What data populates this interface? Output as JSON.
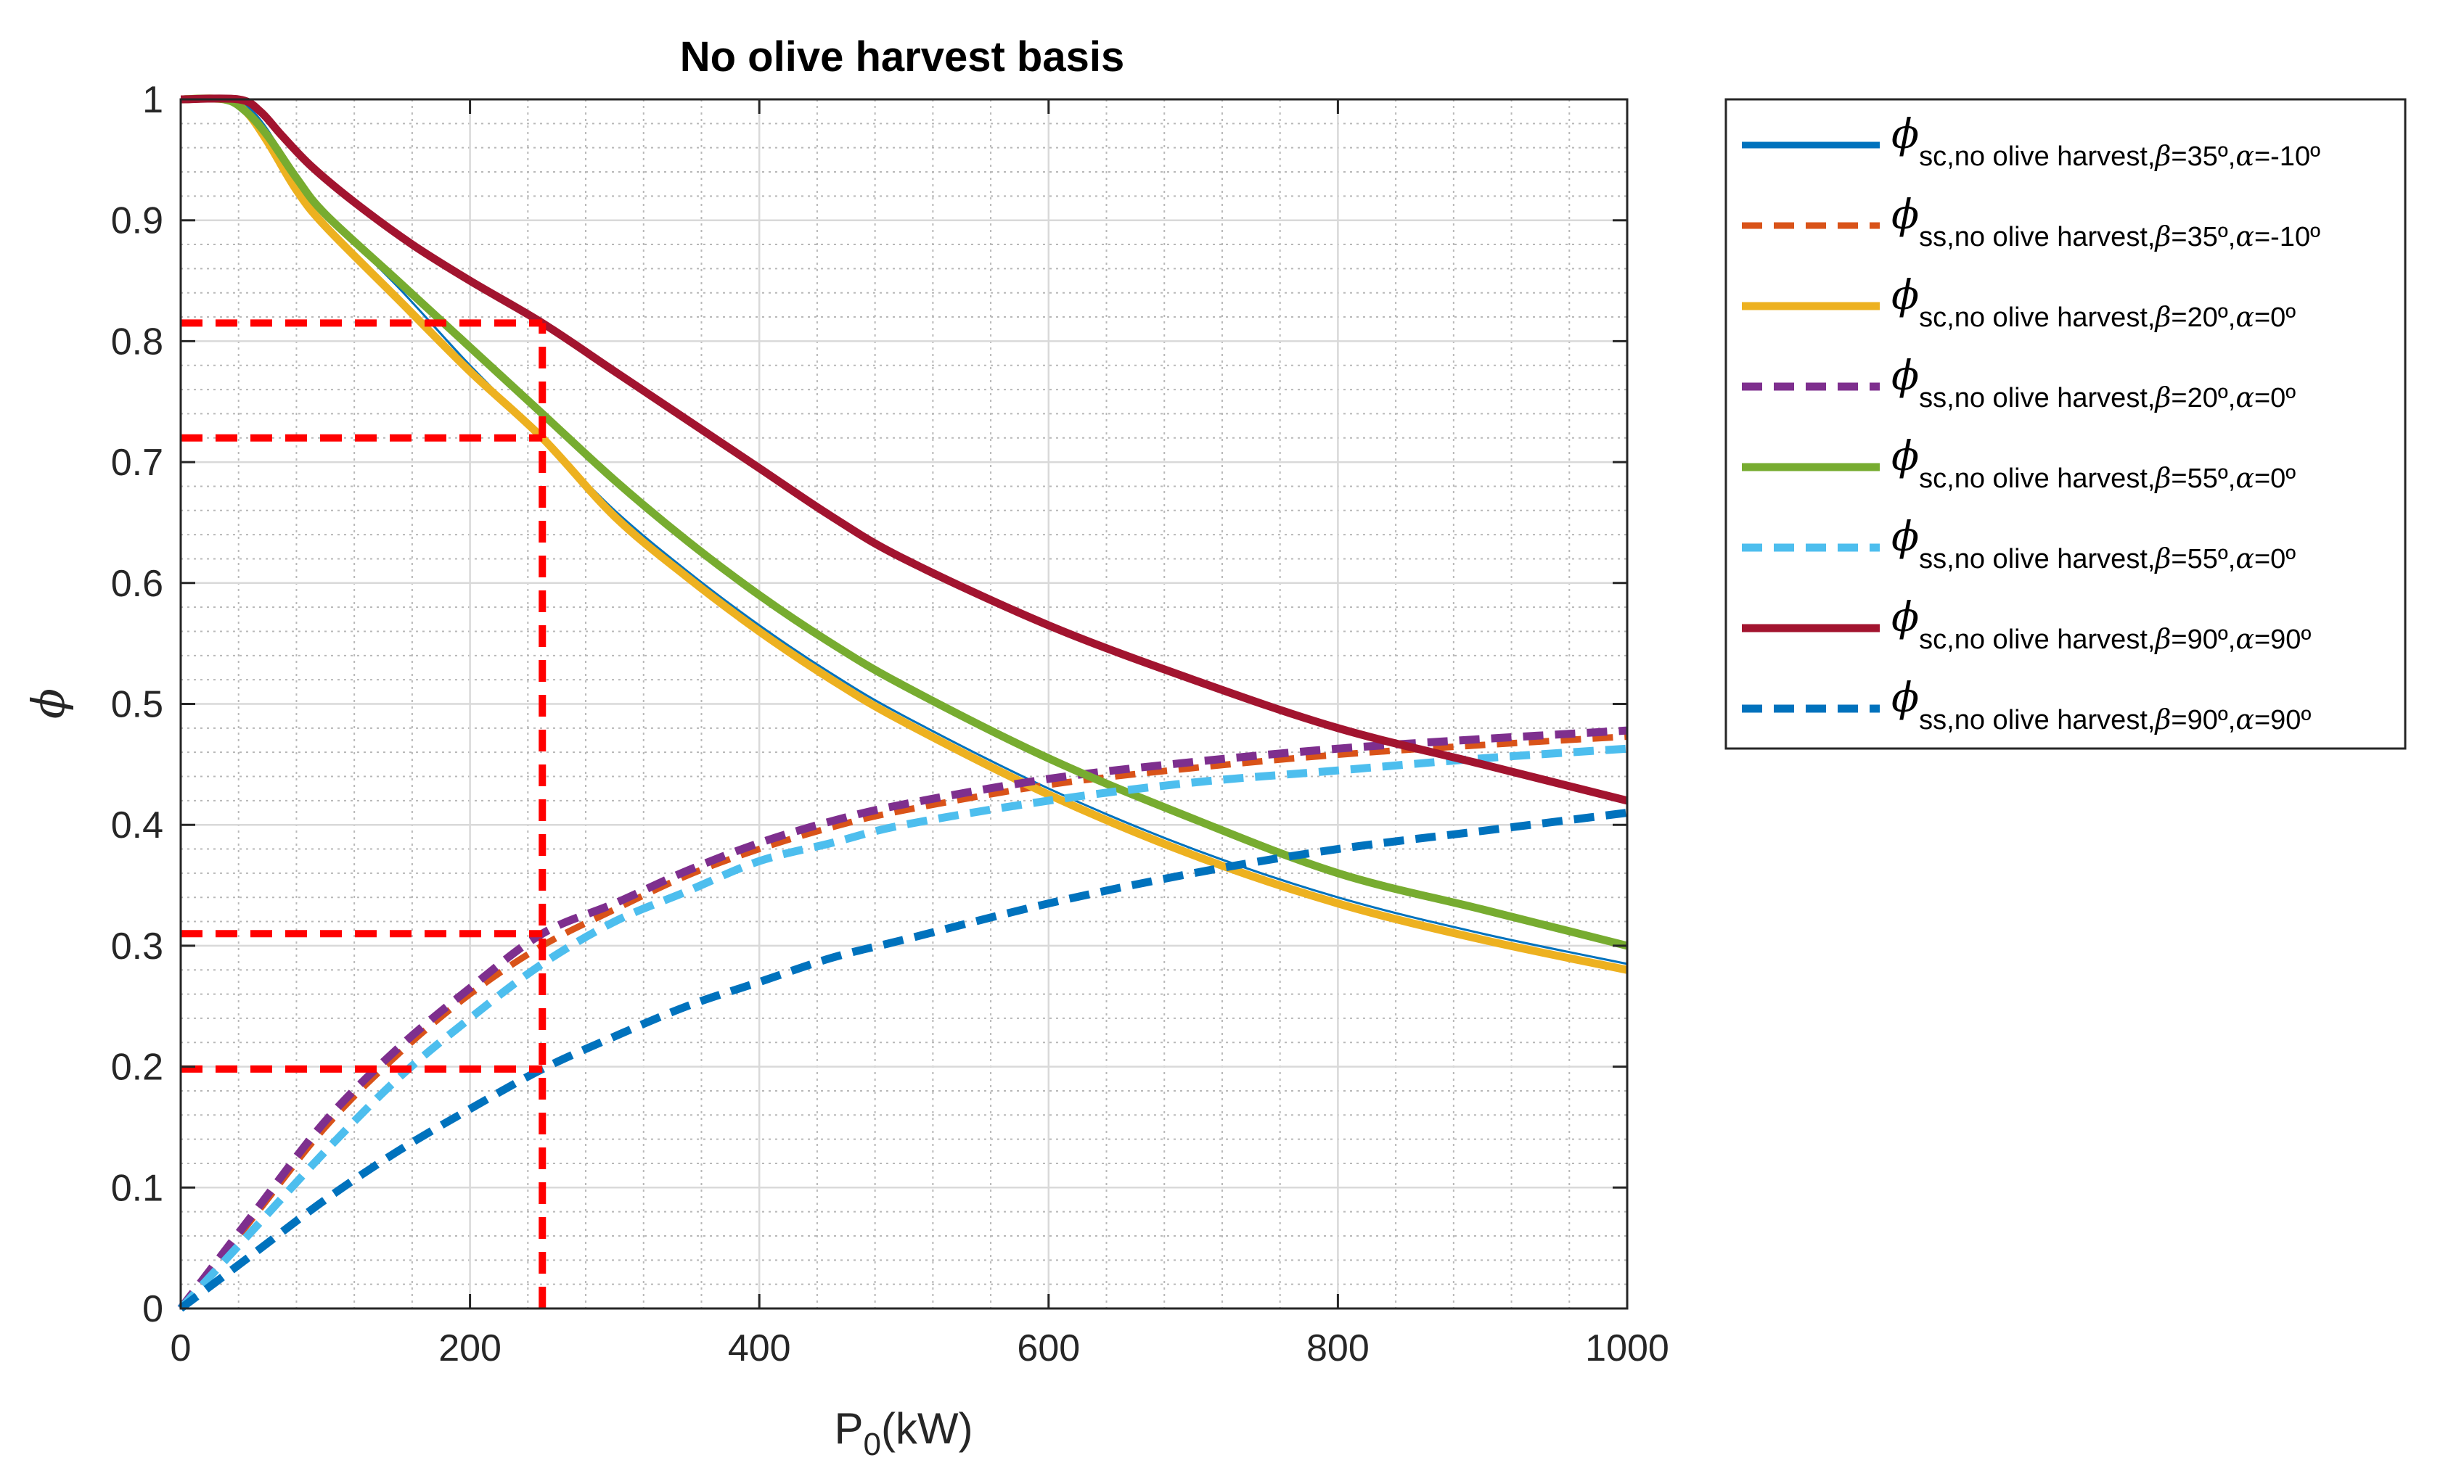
{
  "chart_data": {
    "type": "line",
    "title": "No olive harvest basis",
    "xlabel": {
      "main": "P",
      "sub": "0",
      "unit": "(kW)"
    },
    "ylabel": "ϕ",
    "xlim": [
      0,
      1000
    ],
    "ylim": [
      0,
      1
    ],
    "xticks": [
      "0",
      "200",
      "400",
      "600",
      "800",
      "1000"
    ],
    "yticks": [
      "0",
      "0.1",
      "0.2",
      "0.3",
      "0.4",
      "0.5",
      "0.6",
      "0.7",
      "0.8",
      "0.9",
      "1"
    ],
    "grid": true,
    "legend_position": "outside-right",
    "series": [
      {
        "name": "ϕ sc,no olive harvest,β=35º,α=-10º",
        "legend": {
          "symbol": "ϕ",
          "sub": "sc,no olive harvest,",
          "beta": "β",
          "beta_val": "=35º,",
          "alpha": "α",
          "alpha_val": "=-10º"
        },
        "color": "#0072BD",
        "dash": "solid",
        "width": 3,
        "x": [
          0,
          30,
          45,
          60,
          80,
          100,
          150,
          200,
          250,
          300,
          350,
          400,
          450,
          500,
          600,
          700,
          800,
          900,
          1000
        ],
        "y": [
          1.0,
          1.0,
          0.995,
          0.975,
          0.935,
          0.905,
          0.845,
          0.78,
          0.72,
          0.66,
          0.61,
          0.565,
          0.525,
          0.49,
          0.43,
          0.38,
          0.34,
          0.31,
          0.285
        ]
      },
      {
        "name": "ϕ ss,no olive harvest,β=35º,α=-10º",
        "legend": {
          "symbol": "ϕ",
          "sub": "ss,no olive harvest,",
          "beta": "β",
          "beta_val": "=35º,",
          "alpha": "α",
          "alpha_val": "=-10º"
        },
        "color": "#D95319",
        "dash": "dashed",
        "width": 9,
        "x": [
          0,
          50,
          100,
          150,
          200,
          250,
          300,
          350,
          400,
          450,
          500,
          600,
          700,
          800,
          900,
          1000
        ],
        "y": [
          0,
          0.075,
          0.15,
          0.21,
          0.26,
          0.3,
          0.33,
          0.358,
          0.38,
          0.398,
          0.412,
          0.433,
          0.447,
          0.458,
          0.466,
          0.473
        ]
      },
      {
        "name": "ϕ sc,no olive harvest,β=20º,α=0º",
        "legend": {
          "symbol": "ϕ",
          "sub": "sc,no olive harvest,",
          "beta": "β",
          "beta_val": "=20º,",
          "alpha": "α",
          "alpha_val": "=0º"
        },
        "color": "#EDB120",
        "dash": "solid",
        "width": 11,
        "x": [
          0,
          30,
          45,
          60,
          80,
          100,
          150,
          200,
          250,
          300,
          350,
          400,
          450,
          500,
          600,
          700,
          800,
          900,
          1000
        ],
        "y": [
          1.0,
          1.0,
          0.99,
          0.965,
          0.925,
          0.895,
          0.835,
          0.775,
          0.72,
          0.655,
          0.605,
          0.56,
          0.52,
          0.485,
          0.425,
          0.375,
          0.335,
          0.305,
          0.28
        ]
      },
      {
        "name": "ϕ ss,no olive harvest,β=20º,α=0º",
        "legend": {
          "symbol": "ϕ",
          "sub": "ss,no olive harvest,",
          "beta": "β",
          "beta_val": "=20º,",
          "alpha": "α",
          "alpha_val": "=0º"
        },
        "color": "#7E2F8E",
        "dash": "dashed",
        "width": 11,
        "x": [
          0,
          50,
          100,
          150,
          200,
          250,
          300,
          350,
          400,
          450,
          500,
          600,
          700,
          800,
          900,
          1000
        ],
        "y": [
          0,
          0.078,
          0.155,
          0.215,
          0.265,
          0.31,
          0.335,
          0.362,
          0.385,
          0.403,
          0.417,
          0.438,
          0.452,
          0.463,
          0.471,
          0.478
        ]
      },
      {
        "name": "ϕ sc,no olive harvest,β=55º,α=0º",
        "legend": {
          "symbol": "ϕ",
          "sub": "sc,no olive harvest,",
          "beta": "β",
          "beta_val": "=55º,",
          "alpha": "α",
          "alpha_val": "=0º"
        },
        "color": "#77AC30",
        "dash": "solid",
        "width": 11,
        "x": [
          0,
          30,
          45,
          60,
          80,
          100,
          150,
          200,
          250,
          300,
          350,
          400,
          450,
          500,
          600,
          700,
          800,
          900,
          1000
        ],
        "y": [
          1.0,
          1.0,
          0.99,
          0.97,
          0.935,
          0.905,
          0.85,
          0.795,
          0.74,
          0.685,
          0.635,
          0.59,
          0.55,
          0.515,
          0.455,
          0.405,
          0.36,
          0.33,
          0.3
        ]
      },
      {
        "name": "ϕ ss,no olive harvest,β=55º,α=0º",
        "legend": {
          "symbol": "ϕ",
          "sub": "ss,no olive harvest,",
          "beta": "β",
          "beta_val": "=55º,",
          "alpha": "α",
          "alpha_val": "=0º"
        },
        "color": "#4DBEEE",
        "dash": "dashed",
        "width": 11,
        "x": [
          0,
          50,
          100,
          150,
          200,
          250,
          300,
          350,
          400,
          450,
          500,
          600,
          700,
          800,
          900,
          1000
        ],
        "y": [
          0,
          0.065,
          0.13,
          0.19,
          0.24,
          0.285,
          0.32,
          0.345,
          0.37,
          0.385,
          0.4,
          0.42,
          0.435,
          0.445,
          0.455,
          0.463
        ]
      },
      {
        "name": "ϕ sc,no olive harvest,β=90º,α=90º",
        "legend": {
          "symbol": "ϕ",
          "sub": "sc,no olive harvest,",
          "beta": "β",
          "beta_val": "=90º,",
          "alpha": "α",
          "alpha_val": "=90º"
        },
        "color": "#A2142F",
        "dash": "solid",
        "width": 11,
        "x": [
          0,
          40,
          55,
          70,
          90,
          120,
          160,
          200,
          250,
          300,
          350,
          400,
          450,
          500,
          600,
          700,
          800,
          900,
          1000
        ],
        "y": [
          1.0,
          1.0,
          0.99,
          0.97,
          0.945,
          0.915,
          0.88,
          0.85,
          0.815,
          0.775,
          0.735,
          0.695,
          0.655,
          0.62,
          0.565,
          0.52,
          0.48,
          0.45,
          0.42
        ]
      },
      {
        "name": "ϕ ss,no olive harvest,β=90º,α=90º",
        "legend": {
          "symbol": "ϕ",
          "sub": "ss,no olive harvest,",
          "beta": "β",
          "beta_val": "=90º,",
          "alpha": "α",
          "alpha_val": "=90º"
        },
        "color": "#0072BD",
        "dash": "dashed",
        "width": 11,
        "x": [
          0,
          50,
          100,
          150,
          200,
          250,
          300,
          350,
          400,
          450,
          500,
          600,
          700,
          800,
          900,
          1000
        ],
        "y": [
          0,
          0.045,
          0.09,
          0.13,
          0.165,
          0.198,
          0.225,
          0.25,
          0.27,
          0.29,
          0.305,
          0.335,
          0.36,
          0.38,
          0.395,
          0.41
        ]
      }
    ],
    "annotations": {
      "color": "#FF0000",
      "vertical_x": 250,
      "horizontal_y": [
        0.815,
        0.72,
        0.31,
        0.198
      ]
    }
  }
}
